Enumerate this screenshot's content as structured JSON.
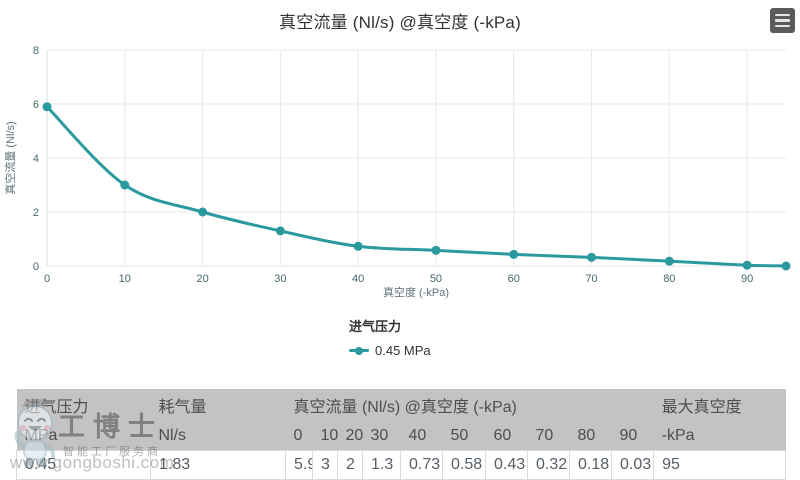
{
  "chart_data": {
    "type": "line",
    "title": "真空流量 (Nl/s) @真空度 (-kPa)",
    "xlabel": "真空度 (-kPa)",
    "ylabel": "真空流量 (Nl/s)",
    "xlim": [
      0,
      95
    ],
    "ylim": [
      0,
      8
    ],
    "x_ticks": [
      0,
      10,
      20,
      30,
      40,
      50,
      60,
      70,
      80,
      90
    ],
    "y_ticks": [
      0,
      2,
      4,
      6,
      8
    ],
    "grid": true,
    "legend_position": "bottom",
    "legend_title": "进气压力",
    "series": [
      {
        "name": "0.45 MPa",
        "color": "#2b9a9e",
        "x": [
          0,
          10,
          20,
          30,
          40,
          50,
          60,
          70,
          80,
          90,
          95
        ],
        "y": [
          5.9,
          3,
          2,
          1.3,
          0.73,
          0.58,
          0.43,
          0.32,
          0.18,
          0.03,
          0
        ]
      }
    ]
  },
  "table": {
    "group_headers": [
      {
        "label": "进气压力",
        "colspan": 1
      },
      {
        "label": "耗气量",
        "colspan": 1
      },
      {
        "label": "真空流量 (Nl/s) @真空度 (-kPa)",
        "colspan": 10
      },
      {
        "label": "最大真空度",
        "colspan": 1
      }
    ],
    "unit_cells": [
      "MPa",
      "Nl/s",
      "0",
      "10",
      "20",
      "30",
      "40",
      "50",
      "60",
      "70",
      "80",
      "90",
      "-kPa"
    ],
    "data_cells": [
      "0.45",
      "1.83",
      "5.9",
      "3",
      "2",
      "1.3",
      "0.73",
      "0.58",
      "0.43",
      "0.32",
      "0.18",
      "0.03",
      "95"
    ]
  },
  "watermark": {
    "brand": "工博士",
    "tagline": "智能工厂服务商",
    "url": "www.gongboshi.com"
  },
  "colors": {
    "series": "#2b9a9e",
    "table_header_bg": "#c3c3c3",
    "gridline": "#e7e7e7"
  }
}
